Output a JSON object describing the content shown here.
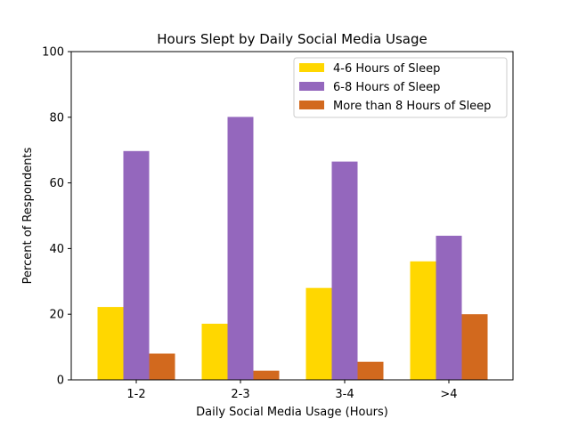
{
  "chart_data": {
    "type": "bar",
    "title": "Hours Slept by Daily Social Media Usage",
    "xlabel": "Daily Social Media Usage (Hours)",
    "ylabel": "Percent of Respondents",
    "categories": [
      "1-2",
      "2-3",
      "3-4",
      ">4"
    ],
    "series": [
      {
        "name": "4-6 Hours of Sleep",
        "color": "#FFD700",
        "values": [
          22.2,
          17.1,
          28.0,
          36.1
        ]
      },
      {
        "name": "6-8 Hours of Sleep",
        "color": "#9467BD",
        "values": [
          69.7,
          80.1,
          66.5,
          43.9
        ]
      },
      {
        "name": "More than 8 Hours of Sleep",
        "color": "#D2691E",
        "values": [
          8.0,
          2.8,
          5.5,
          20.0
        ]
      }
    ],
    "ylim": [
      0,
      100
    ],
    "yticks": [
      "0",
      "20",
      "40",
      "60",
      "80",
      "100"
    ],
    "grid": false,
    "legend_position": "top-right"
  }
}
